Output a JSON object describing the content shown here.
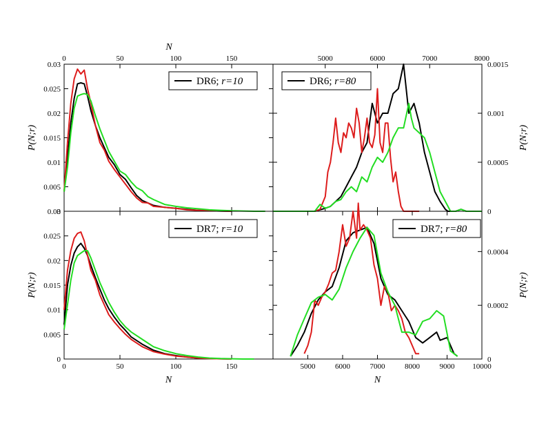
{
  "chart_data": [
    {
      "id": "tl",
      "type": "line",
      "legend": {
        "label": "DR6; ",
        "label_italic": "r=10",
        "color": "#000000",
        "placement": "top-right"
      },
      "top_xlabel": "N",
      "ylabel": "P(N;r)",
      "xlim": [
        0,
        187
      ],
      "ylim": [
        0,
        0.03
      ],
      "x_ticks": [
        0,
        50,
        100,
        150
      ],
      "x_tick_labels": [
        "0",
        "50",
        "100",
        "150"
      ],
      "x_labels_position": "top",
      "y_ticks": [
        0,
        0.005,
        0.01,
        0.015,
        0.02,
        0.025,
        0.03
      ],
      "y_tick_labels": [
        "0",
        "0.005",
        "0.01",
        "0.015",
        "0.02",
        "0.025",
        "0.03"
      ],
      "y_labels_side": "left",
      "series": [
        {
          "color": "#000000",
          "x": [
            0,
            3,
            6,
            9,
            12,
            15,
            18,
            21,
            24,
            28,
            32,
            36,
            40,
            45,
            50,
            55,
            60,
            65,
            70,
            75,
            80,
            90,
            100,
            110,
            120,
            130,
            140,
            150
          ],
          "y": [
            0.004,
            0.011,
            0.018,
            0.023,
            0.026,
            0.0262,
            0.026,
            0.0235,
            0.0205,
            0.0175,
            0.015,
            0.013,
            0.011,
            0.0095,
            0.0075,
            0.0065,
            0.0048,
            0.0032,
            0.0022,
            0.0017,
            0.0012,
            0.0008,
            0.0006,
            0.0004,
            0.0002,
            0.0001,
            5e-05,
            0
          ]
        },
        {
          "color": "#dd1c1c",
          "x": [
            0,
            3,
            6,
            9,
            12,
            15,
            18,
            21,
            24,
            28,
            32,
            36,
            40,
            45,
            50,
            55,
            60,
            65,
            70,
            75,
            80,
            90,
            100,
            110,
            120,
            130,
            140,
            150
          ],
          "y": [
            0.004,
            0.014,
            0.022,
            0.027,
            0.029,
            0.028,
            0.0288,
            0.025,
            0.022,
            0.0175,
            0.014,
            0.0125,
            0.0102,
            0.0085,
            0.007,
            0.0055,
            0.004,
            0.0027,
            0.0018,
            0.0017,
            0.001,
            0.0008,
            0.0006,
            0.0003,
            0.0002,
            0.0001,
            5e-05,
            0
          ]
        },
        {
          "color": "#22dd22",
          "x": [
            0,
            3,
            6,
            9,
            12,
            15,
            18,
            21,
            24,
            28,
            32,
            36,
            40,
            45,
            50,
            55,
            60,
            65,
            70,
            75,
            80,
            90,
            100,
            110,
            120,
            130,
            140,
            150,
            160,
            170,
            180
          ],
          "y": [
            0.004,
            0.009,
            0.016,
            0.021,
            0.0235,
            0.0238,
            0.024,
            0.0238,
            0.0225,
            0.0195,
            0.0168,
            0.0145,
            0.0122,
            0.0102,
            0.0082,
            0.0075,
            0.006,
            0.0048,
            0.0042,
            0.003,
            0.0024,
            0.0014,
            0.001,
            0.0007,
            0.0005,
            0.0003,
            0.0002,
            0.0001,
            5e-05,
            0,
            0
          ]
        }
      ]
    },
    {
      "id": "tr",
      "type": "line",
      "legend": {
        "label": "DR6; ",
        "label_italic": "r=80",
        "color": "#000000",
        "placement": "top-left"
      },
      "ylabel": "P(N;r)",
      "xlim": [
        4000,
        8000
      ],
      "ylim": [
        0,
        0.0015
      ],
      "x_ticks": [
        5000,
        6000,
        7000,
        8000
      ],
      "x_tick_labels": [
        "5000",
        "6000",
        "7000",
        "8000"
      ],
      "x_labels_position": "top",
      "y_ticks": [
        0,
        0.0005,
        0.001,
        0.0015
      ],
      "y_tick_labels": [
        "0",
        "0.0005",
        "0.001",
        "0.0015"
      ],
      "y_labels_side": "right",
      "series": [
        {
          "color": "#000000",
          "x": [
            4200,
            4800,
            5000,
            5100,
            5200,
            5300,
            5400,
            5500,
            5600,
            5700,
            5800,
            5900,
            6000,
            6100,
            6200,
            6300,
            6400,
            6500,
            6600,
            6700,
            6800,
            6900,
            7000,
            7100,
            7200,
            7300,
            7350,
            7400,
            7500,
            7600,
            7700,
            7800,
            7900,
            8000
          ],
          "y": [
            0,
            0,
            3e-05,
            5e-05,
            0.0001,
            0.00015,
            0.00025,
            0.00035,
            0.00045,
            0.0006,
            0.0007,
            0.0011,
            0.0009,
            0.001,
            0.001,
            0.0012,
            0.00125,
            0.0015,
            0.001,
            0.0011,
            0.0009,
            0.0006,
            0.0004,
            0.0002,
            0.0001,
            2e-05,
            0,
            0,
            0,
            2e-05,
            0,
            0,
            0,
            0
          ]
        },
        {
          "color": "#dd1c1c",
          "x": [
            4400,
            4800,
            4900,
            5000,
            5050,
            5100,
            5150,
            5200,
            5250,
            5300,
            5350,
            5400,
            5450,
            5500,
            5550,
            5600,
            5650,
            5700,
            5750,
            5800,
            5850,
            5900,
            5950,
            6000,
            6050,
            6100,
            6150,
            6200,
            6250,
            6300,
            6350,
            6400,
            6450,
            6500,
            6600,
            6700,
            6800
          ],
          "y": [
            0,
            0,
            2e-05,
            0.00015,
            0.0004,
            0.0005,
            0.0007,
            0.00095,
            0.0007,
            0.0006,
            0.0008,
            0.00075,
            0.0009,
            0.00085,
            0.00075,
            0.00105,
            0.0009,
            0.0006,
            0.00075,
            0.00095,
            0.0007,
            0.00065,
            0.00078,
            0.00125,
            0.0007,
            0.0006,
            0.0009,
            0.0009,
            0.00055,
            0.0003,
            0.0004,
            0.0002,
            5e-05,
            0,
            0,
            0,
            0
          ]
        },
        {
          "color": "#22dd22",
          "x": [
            4000,
            4800,
            4900,
            5000,
            5100,
            5200,
            5300,
            5400,
            5500,
            5600,
            5700,
            5800,
            5900,
            6000,
            6100,
            6200,
            6300,
            6400,
            6500,
            6600,
            6650,
            6700,
            6800,
            6900,
            7000,
            7100,
            7200,
            7300,
            7350,
            7400,
            7500,
            7600,
            7700,
            7800,
            7900,
            8000
          ],
          "y": [
            0,
            0,
            7e-05,
            3e-05,
            5e-05,
            0.0001,
            0.00012,
            0.0002,
            0.00025,
            0.0002,
            0.00035,
            0.0003,
            0.00045,
            0.00055,
            0.0005,
            0.0006,
            0.00075,
            0.00085,
            0.00085,
            0.0011,
            0.00095,
            0.00085,
            0.0008,
            0.00075,
            0.0006,
            0.0004,
            0.0002,
            0.0001,
            5e-05,
            0,
            0,
            2e-05,
            0,
            0,
            0,
            0
          ]
        }
      ]
    },
    {
      "id": "bl",
      "type": "line",
      "legend": {
        "label": "DR7; ",
        "label_italic": "r=10",
        "color": "#000000",
        "placement": "top-right"
      },
      "xlabel": "N",
      "ylabel": "P(N;r)",
      "xlim": [
        0,
        187
      ],
      "ylim": [
        0,
        0.03
      ],
      "x_ticks": [
        0,
        50,
        100,
        150
      ],
      "x_tick_labels": [
        "0",
        "50",
        "100",
        "150"
      ],
      "x_labels_position": "bottom",
      "y_ticks": [
        0,
        0.005,
        0.01,
        0.015,
        0.02,
        0.025,
        0.03
      ],
      "y_tick_labels": [
        "0",
        "0.005",
        "0.01",
        "0.015",
        "0.02",
        "0.025",
        "0.03"
      ],
      "y_labels_side": "left",
      "series": [
        {
          "color": "#000000",
          "x": [
            0,
            3,
            6,
            9,
            12,
            15,
            18,
            21,
            24,
            28,
            32,
            36,
            40,
            45,
            50,
            55,
            60,
            70,
            80,
            90,
            100,
            110,
            120,
            130,
            140,
            150
          ],
          "y": [
            0.007,
            0.015,
            0.019,
            0.0215,
            0.0228,
            0.0235,
            0.0225,
            0.021,
            0.019,
            0.0165,
            0.0142,
            0.012,
            0.0102,
            0.0085,
            0.007,
            0.0058,
            0.0045,
            0.003,
            0.0018,
            0.0011,
            0.0007,
            0.0004,
            0.0002,
            0.0001,
            5e-05,
            0
          ]
        },
        {
          "color": "#dd1c1c",
          "x": [
            0,
            3,
            6,
            9,
            12,
            15,
            18,
            21,
            24,
            28,
            32,
            36,
            40,
            45,
            50,
            55,
            60,
            70,
            80,
            90,
            100,
            110,
            120,
            130,
            140,
            150
          ],
          "y": [
            0.01,
            0.018,
            0.022,
            0.0245,
            0.0255,
            0.0258,
            0.024,
            0.021,
            0.018,
            0.016,
            0.013,
            0.011,
            0.009,
            0.0075,
            0.0062,
            0.005,
            0.004,
            0.0025,
            0.0015,
            0.001,
            0.0006,
            0.0004,
            0.0002,
            0.0001,
            5e-05,
            0
          ]
        },
        {
          "color": "#22dd22",
          "x": [
            0,
            3,
            6,
            9,
            12,
            15,
            18,
            21,
            24,
            28,
            32,
            36,
            40,
            45,
            50,
            55,
            60,
            70,
            80,
            90,
            100,
            110,
            120,
            130,
            140,
            150,
            160,
            170
          ],
          "y": [
            0.006,
            0.011,
            0.016,
            0.0195,
            0.021,
            0.0215,
            0.022,
            0.022,
            0.0205,
            0.018,
            0.0155,
            0.0135,
            0.0115,
            0.0095,
            0.0078,
            0.0065,
            0.0055,
            0.004,
            0.0025,
            0.0017,
            0.0011,
            0.0007,
            0.0004,
            0.0002,
            0.0001,
            5e-05,
            0,
            0
          ]
        }
      ]
    },
    {
      "id": "br",
      "type": "line",
      "legend": {
        "label": "DR7; ",
        "label_italic": "r=80",
        "color": "#000000",
        "placement": "top-right"
      },
      "xlabel": "N",
      "ylabel": "P(N;r)",
      "xlim": [
        4000,
        10000
      ],
      "ylim": [
        0,
        0.00055
      ],
      "x_ticks": [
        5000,
        6000,
        7000,
        8000,
        9000,
        10000
      ],
      "x_tick_labels": [
        "5000",
        "6000",
        "7000",
        "8000",
        "9000",
        "10000"
      ],
      "x_labels_position": "bottom",
      "y_ticks": [
        0,
        0.0002,
        0.0004
      ],
      "y_tick_labels": [
        "0",
        "0.0002",
        "0.0004"
      ],
      "y_labels_side": "right",
      "series": [
        {
          "color": "#000000",
          "x": [
            4500,
            4700,
            4900,
            5100,
            5300,
            5500,
            5700,
            5900,
            6100,
            6300,
            6500,
            6700,
            6900,
            7100,
            7300,
            7500,
            7700,
            7900,
            8100,
            8300,
            8500,
            8700,
            8800,
            9000,
            9200,
            9300
          ],
          "y": [
            1e-05,
            5e-05,
            0.0001,
            0.00017,
            0.00022,
            0.00025,
            0.00027,
            0.00034,
            0.00044,
            0.00047,
            0.00048,
            0.00049,
            0.00043,
            0.0003,
            0.00024,
            0.00022,
            0.00018,
            0.00014,
            8e-05,
            6e-05,
            8e-05,
            0.0001,
            7e-05,
            8e-05,
            2e-05,
            1e-05
          ]
        },
        {
          "color": "#dd1c1c",
          "x": [
            4900,
            5000,
            5100,
            5200,
            5300,
            5400,
            5500,
            5600,
            5700,
            5800,
            5900,
            6000,
            6100,
            6200,
            6300,
            6400,
            6450,
            6500,
            6600,
            6700,
            6800,
            6900,
            7000,
            7100,
            7200,
            7300,
            7400,
            7500,
            7600,
            7700,
            7800,
            7900,
            8000,
            8100,
            8200
          ],
          "y": [
            2e-05,
            5e-05,
            0.0001,
            0.00022,
            0.0002,
            0.00023,
            0.00025,
            0.00028,
            0.00032,
            0.00033,
            0.0004,
            0.0005,
            0.00042,
            0.00045,
            0.00055,
            0.00045,
            0.00058,
            0.00048,
            0.0005,
            0.00048,
            0.00045,
            0.00035,
            0.0003,
            0.0002,
            0.00027,
            0.00025,
            0.00018,
            0.0002,
            0.00018,
            0.00015,
            0.0001,
            8e-05,
            5e-05,
            2e-05,
            2e-05
          ]
        },
        {
          "color": "#22dd22",
          "x": [
            4500,
            4700,
            4900,
            5100,
            5300,
            5500,
            5700,
            5900,
            6100,
            6300,
            6500,
            6700,
            6900,
            7100,
            7300,
            7500,
            7700,
            7900,
            8100,
            8300,
            8500,
            8700,
            8900,
            9100,
            9300
          ],
          "y": [
            1e-05,
            9e-05,
            0.00015,
            0.00021,
            0.00023,
            0.00024,
            0.00022,
            0.00026,
            0.00034,
            0.0004,
            0.00045,
            0.00049,
            0.00046,
            0.00032,
            0.00025,
            0.0002,
            0.0001,
            0.0001,
            9e-05,
            0.00014,
            0.00015,
            0.00018,
            0.00016,
            3e-05,
            1e-05
          ]
        }
      ]
    }
  ]
}
